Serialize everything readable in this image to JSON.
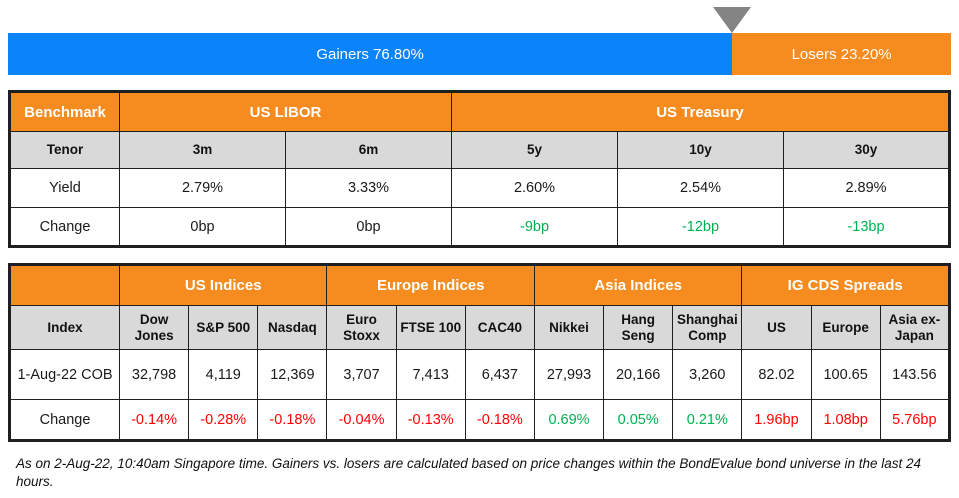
{
  "colors": {
    "gainers-blue": "#0a84f8",
    "losers-orange": "#f68b1f",
    "header-orange": "#f68b1f",
    "header-gray": "#d9d9d9",
    "positive-green": "#00b050",
    "negative-red": "#ff0000",
    "marker-gray": "#848484",
    "border-dark": "#1f1f1f"
  },
  "gauge": {
    "gainers_label": "Gainers 76.80%",
    "losers_label": "Losers 23.20%",
    "gainers_pct": 76.8,
    "losers_pct": 23.2,
    "marker_icon": "down-triangle"
  },
  "benchmark_table": {
    "corner_label": "Benchmark",
    "group_labels": [
      "US LIBOR",
      "US Treasury"
    ],
    "tenor_label": "Tenor",
    "tenors": [
      "3m",
      "6m",
      "5y",
      "10y",
      "30y"
    ],
    "yield_label": "Yield",
    "yields": [
      "2.79%",
      "3.33%",
      "2.60%",
      "2.54%",
      "2.89%"
    ],
    "change_label": "Change",
    "changes": [
      "0bp",
      "0bp",
      "-9bp",
      "-12bp",
      "-13bp"
    ],
    "change_tones": [
      "flat",
      "flat",
      "up",
      "up",
      "up"
    ]
  },
  "indices_table": {
    "corner_label": "",
    "group_labels": [
      "US Indices",
      "Europe Indices",
      "Asia Indices",
      "IG CDS Spreads"
    ],
    "index_label": "Index",
    "columns": [
      "Dow Jones",
      "S&P 500",
      "Nasdaq",
      "Euro Stoxx",
      "FTSE 100",
      "CAC40",
      "Nikkei",
      "Hang Seng",
      "Shanghai Comp",
      "US",
      "Europe",
      "Asia ex-Japan"
    ],
    "date_label": "1-Aug-22 COB",
    "values": [
      "32,798",
      "4,119",
      "12,369",
      "3,707",
      "7,413",
      "6,437",
      "27,993",
      "20,166",
      "3,260",
      "82.02",
      "100.65",
      "143.56"
    ],
    "change_label": "Change",
    "changes": [
      "-0.14%",
      "-0.28%",
      "-0.18%",
      "-0.04%",
      "-0.13%",
      "-0.18%",
      "0.69%",
      "0.05%",
      "0.21%",
      "1.96bp",
      "1.08bp",
      "5.76bp"
    ],
    "change_tones": [
      "down",
      "down",
      "down",
      "down",
      "down",
      "down",
      "up",
      "up",
      "up",
      "down",
      "down",
      "down"
    ]
  },
  "footnote": "As on 2-Aug-22, 10:40am Singapore time. Gainers vs. losers are calculated based on price changes within the BondEvalue bond universe in the last 24 hours.",
  "chart_data": [
    {
      "type": "bar",
      "title": "Gainers vs Losers",
      "categories": [
        "Gainers",
        "Losers"
      ],
      "values": [
        76.8,
        23.2
      ],
      "unit": "%",
      "orientation": "horizontal-stacked",
      "legend_position": "none",
      "annotations": [
        "gray down-triangle marker at the 76.80% boundary"
      ]
    },
    {
      "type": "table",
      "title": "Benchmark",
      "column_groups": [
        {
          "label": "US LIBOR",
          "columns": [
            "3m",
            "6m"
          ]
        },
        {
          "label": "US Treasury",
          "columns": [
            "5y",
            "10y",
            "30y"
          ]
        }
      ],
      "columns": [
        "Tenor",
        "3m",
        "6m",
        "5y",
        "10y",
        "30y"
      ],
      "rows": [
        [
          "Yield",
          "2.79%",
          "3.33%",
          "2.60%",
          "2.54%",
          "2.89%"
        ],
        [
          "Change",
          "0bp",
          "0bp",
          "-9bp",
          "-12bp",
          "-13bp"
        ]
      ]
    },
    {
      "type": "table",
      "title": "Indices and IG CDS Spreads",
      "column_groups": [
        {
          "label": "US Indices",
          "columns": [
            "Dow Jones",
            "S&P 500",
            "Nasdaq"
          ]
        },
        {
          "label": "Europe Indices",
          "columns": [
            "Euro Stoxx",
            "FTSE 100",
            "CAC40"
          ]
        },
        {
          "label": "Asia Indices",
          "columns": [
            "Nikkei",
            "Hang Seng",
            "Shanghai Comp"
          ]
        },
        {
          "label": "IG CDS Spreads",
          "columns": [
            "US",
            "Europe",
            "Asia ex-Japan"
          ]
        }
      ],
      "columns": [
        "Index",
        "Dow Jones",
        "S&P 500",
        "Nasdaq",
        "Euro Stoxx",
        "FTSE 100",
        "CAC40",
        "Nikkei",
        "Hang Seng",
        "Shanghai Comp",
        "US",
        "Europe",
        "Asia ex-Japan"
      ],
      "rows": [
        [
          "1-Aug-22 COB",
          "32,798",
          "4,119",
          "12,369",
          "3,707",
          "7,413",
          "6,437",
          "27,993",
          "20,166",
          "3,260",
          "82.02",
          "100.65",
          "143.56"
        ],
        [
          "Change",
          "-0.14%",
          "-0.28%",
          "-0.18%",
          "-0.04%",
          "-0.13%",
          "-0.18%",
          "0.69%",
          "0.05%",
          "0.21%",
          "1.96bp",
          "1.08bp",
          "5.76bp"
        ]
      ]
    }
  ]
}
